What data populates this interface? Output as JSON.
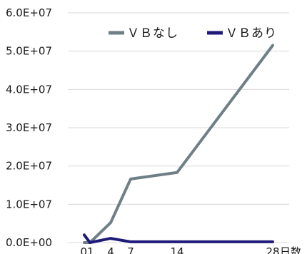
{
  "chart_data": {
    "type": "line",
    "title": "",
    "xlabel": "日数",
    "ylabel": "",
    "grid": true,
    "legend_position": "top-right",
    "x": [
      0,
      1,
      4,
      7,
      14,
      28
    ],
    "x_tick_labels": [
      "01",
      "4",
      "7",
      "14",
      "28"
    ],
    "ylim": [
      0,
      60000000
    ],
    "y_tick_values": [
      0,
      10000000,
      20000000,
      30000000,
      40000000,
      50000000,
      60000000
    ],
    "y_tick_labels": [
      "0.0E+00",
      "1.0E+07",
      "2.0E+07",
      "3.0E+07",
      "4.0E+07",
      "5.0E+07",
      "6.0E+07"
    ],
    "series": [
      {
        "name": "ＶＢなし",
        "color": "#6f7f86",
        "values": [
          0,
          0,
          5200000,
          16600000,
          18300000,
          51500000
        ]
      },
      {
        "name": "ＶＢあり",
        "color": "#1f1a7a",
        "values": [
          2000000,
          0,
          1100000,
          200000,
          200000,
          200000
        ]
      }
    ]
  }
}
